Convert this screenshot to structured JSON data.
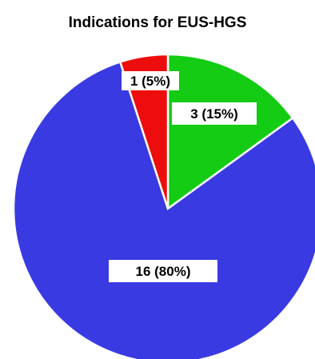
{
  "chart_data": {
    "type": "pie",
    "title": "Indications for EUS-HGS",
    "slices": [
      {
        "value": 3,
        "percent": 15,
        "label": "3 (15%)",
        "color": "#13cc13"
      },
      {
        "value": 16,
        "percent": 80,
        "label": "16 (80%)",
        "color": "#3a3ae2"
      },
      {
        "value": 1,
        "percent": 5,
        "label": "1 (5%)",
        "color": "#ee0d0d"
      }
    ],
    "start": "12 o'clock",
    "direction": "clockwise",
    "slice_border_color": "#ffffff",
    "label_box_color": "#ffffff"
  }
}
